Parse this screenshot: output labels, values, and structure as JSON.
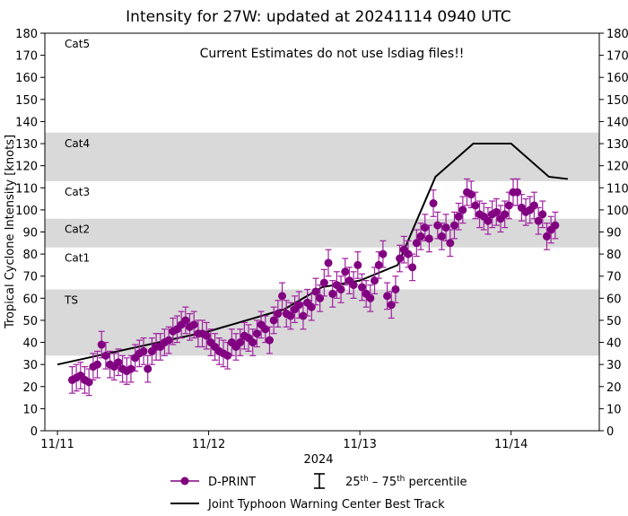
{
  "chart_data": {
    "type": "scatter",
    "title": "Intensity for 27W: updated at 20241114 0940 UTC",
    "annotation": "Current Estimates do not use lsdiag files!!",
    "xlabel": "2024",
    "ylabel": "Tropical Cyclone Intensity [knots]",
    "ylim": [
      0,
      180
    ],
    "yticks": [
      0,
      10,
      20,
      30,
      40,
      50,
      60,
      70,
      80,
      90,
      100,
      110,
      120,
      130,
      140,
      150,
      160,
      170,
      180
    ],
    "xlim": [
      "11/10 22:00",
      "11/14 14:00"
    ],
    "xticks": [
      "11/11",
      "11/12",
      "11/13",
      "11/14"
    ],
    "grid": false,
    "legend_placement": "bottom",
    "categories_bands": [
      {
        "label": "TS",
        "min": 34,
        "max": 64,
        "shaded": true
      },
      {
        "label": "Cat1",
        "min": 64,
        "max": 83,
        "shaded": false
      },
      {
        "label": "Cat2",
        "min": 83,
        "max": 96,
        "shaded": true
      },
      {
        "label": "Cat3",
        "min": 96,
        "max": 113,
        "shaded": false
      },
      {
        "label": "Cat4",
        "min": 113,
        "max": 135,
        "shaded": true
      },
      {
        "label": "Cat5",
        "min": 135,
        "max": 180,
        "shaded": false
      }
    ],
    "band_color": "#d9d9d9",
    "legend": {
      "dprint": "D-PRINT",
      "percentile_pre": "25",
      "percentile_sup1": "th",
      "percentile_mid": " – 75",
      "percentile_sup2": "th",
      "percentile_post": " percentile",
      "besttrack": "Joint Typhoon Warning Center Best Track"
    },
    "series": [
      {
        "name": "D-PRINT",
        "color": "#800080",
        "values": [
          23,
          24,
          25,
          23,
          22,
          29,
          30,
          39,
          34,
          30,
          29,
          31,
          28,
          27,
          28,
          33,
          35,
          36,
          28,
          36,
          38,
          38,
          40,
          41,
          45,
          46,
          48,
          50,
          47,
          48,
          44,
          44,
          43,
          40,
          38,
          36,
          35,
          34,
          40,
          38,
          40,
          43,
          42,
          40,
          44,
          48,
          46,
          41,
          50,
          53,
          61,
          53,
          52,
          55,
          57,
          52,
          58,
          56,
          63,
          60,
          67,
          76,
          62,
          66,
          64,
          72,
          68,
          66,
          75,
          65,
          62,
          60,
          68,
          75,
          80,
          61,
          57,
          64,
          78,
          82,
          80,
          74,
          85,
          88,
          92,
          87,
          103,
          93,
          88,
          92,
          85,
          93,
          97,
          100,
          108,
          107,
          102,
          98,
          97,
          95,
          98,
          99,
          96,
          98,
          102,
          108,
          108,
          101,
          99,
          100,
          102,
          95,
          98,
          88,
          91,
          93
        ],
        "p25_offset": -6,
        "p75_offset": 6,
        "start": "11/11 02:20",
        "interval_minutes": 40
      },
      {
        "name": "Joint Typhoon Warning Center Best Track",
        "color": "#000000",
        "points": [
          [
            "11/11 00:00",
            30
          ],
          [
            "11/12 00:00",
            45
          ],
          [
            "11/12 12:00",
            55
          ],
          [
            "11/12 18:00",
            65
          ],
          [
            "11/13 00:00",
            68
          ],
          [
            "11/13 06:00",
            75
          ],
          [
            "11/13 12:00",
            115
          ],
          [
            "11/13 18:00",
            130
          ],
          [
            "11/14 00:00",
            130
          ],
          [
            "11/14 06:00",
            115
          ],
          [
            "11/14 09:00",
            114
          ]
        ]
      }
    ]
  }
}
